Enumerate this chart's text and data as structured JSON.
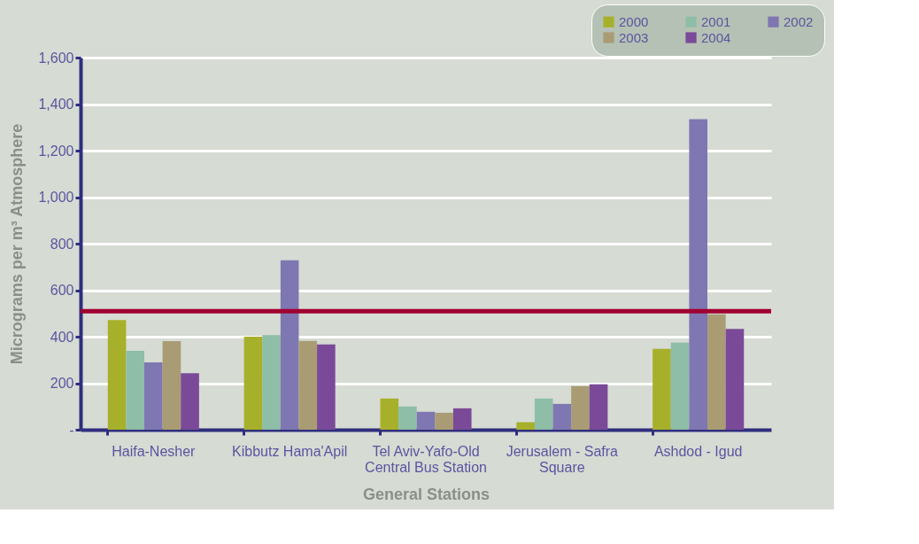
{
  "chart_data": {
    "type": "bar",
    "xlabel": "General Stations",
    "ylabel": "Micrograms per m³ Atmosphere",
    "categories": [
      "Haifa-Nesher",
      "Kibbutz Hama'Apil",
      "Tel Aviv-Yafo-Old Central Bus Station",
      "Jerusalem - Safra Square",
      "Ashdod - Igud"
    ],
    "series": [
      {
        "name": "2000",
        "color": "#a7b02a",
        "values": [
          471,
          400,
          134,
          32,
          348
        ]
      },
      {
        "name": "2001",
        "color": "#8ebda8",
        "values": [
          339,
          407,
          100,
          134,
          374
        ]
      },
      {
        "name": "2002",
        "color": "#7f77b1",
        "values": [
          290,
          729,
          77,
          111,
          1335
        ]
      },
      {
        "name": "2003",
        "color": "#a99c74",
        "values": [
          381,
          382,
          73,
          188,
          496
        ]
      },
      {
        "name": "2004",
        "color": "#7a4a98",
        "values": [
          243,
          367,
          92,
          195,
          433
        ]
      }
    ],
    "ylim": [
      0,
      1600
    ],
    "yticks": [
      {
        "value": 0,
        "label": "-"
      },
      200,
      400,
      600,
      800,
      {
        "value": 1000,
        "label": "1,000"
      },
      {
        "value": 1200,
        "label": "1,200"
      },
      {
        "value": 1400,
        "label": "1,400"
      },
      {
        "value": 1600,
        "label": "1,600"
      }
    ],
    "ref_lines": [
      {
        "axis": "y",
        "value": 510,
        "color": "#a00030"
      }
    ],
    "grid": "y",
    "legend": "top right"
  }
}
